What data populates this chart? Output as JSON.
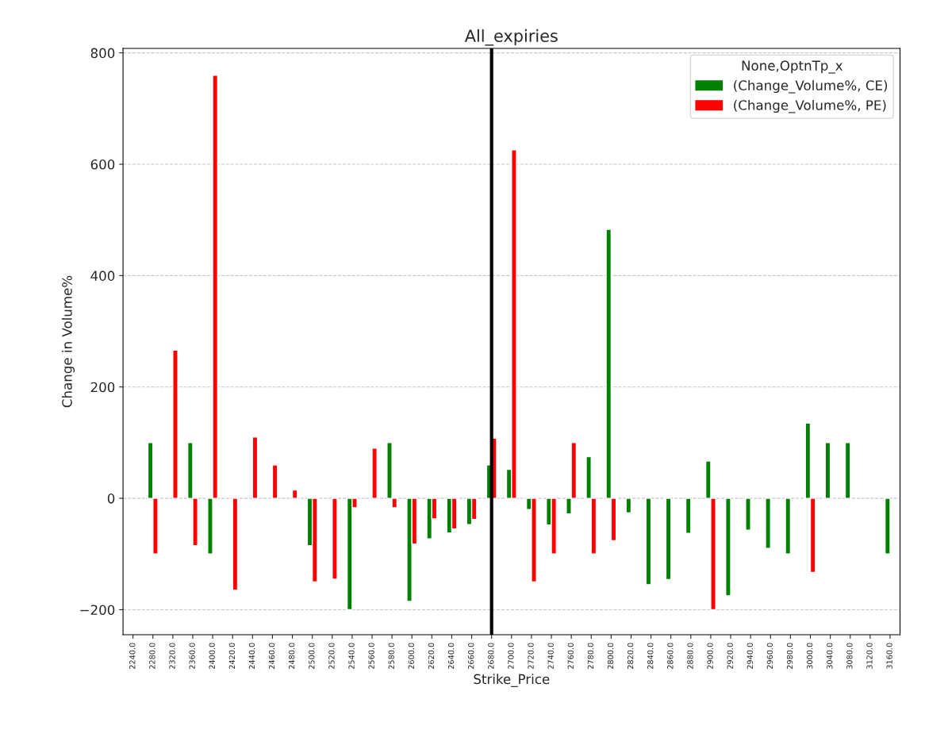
{
  "chart_data": {
    "type": "bar",
    "title": "All_expiries",
    "xlabel": "Strike_Price",
    "ylabel": "Change in Volume%",
    "legend_title": "None,OptnTp_x",
    "categories": [
      "2240.0",
      "2280.0",
      "2320.0",
      "2360.0",
      "2400.0",
      "2420.0",
      "2440.0",
      "2460.0",
      "2480.0",
      "2500.0",
      "2520.0",
      "2540.0",
      "2560.0",
      "2580.0",
      "2600.0",
      "2620.0",
      "2640.0",
      "2660.0",
      "2680.0",
      "2700.0",
      "2720.0",
      "2740.0",
      "2760.0",
      "2780.0",
      "2800.0",
      "2820.0",
      "2840.0",
      "2860.0",
      "2880.0",
      "2900.0",
      "2920.0",
      "2940.0",
      "2960.0",
      "2980.0",
      "3000.0",
      "3040.0",
      "3080.0",
      "3120.0",
      "3160.0"
    ],
    "series": [
      {
        "name": "(Change_Volume%, CE)",
        "color": "#008000",
        "values": [
          null,
          100,
          null,
          100,
          -100,
          null,
          null,
          null,
          null,
          -85,
          null,
          -200,
          null,
          100,
          -185,
          -73,
          -62,
          -47,
          60,
          52,
          -20,
          -48,
          -28,
          75,
          483,
          -26,
          -155,
          -146,
          -63,
          67,
          -175,
          -57,
          -90,
          -100,
          135,
          100,
          100,
          null,
          -100
        ]
      },
      {
        "name": "(Change_Volume%, PE)",
        "color": "#ff0000",
        "values": [
          null,
          -100,
          266,
          -85,
          760,
          -165,
          110,
          60,
          15,
          -150,
          -145,
          -17,
          90,
          -17,
          -82,
          -37,
          -55,
          -38,
          108,
          626,
          -150,
          -100,
          100,
          -100,
          -76,
          null,
          null,
          null,
          null,
          -200,
          null,
          null,
          null,
          null,
          -133,
          null,
          null,
          null,
          null
        ]
      }
    ],
    "ylim": [
      -245,
      808
    ],
    "yticks": [
      {
        "value": -200,
        "label": "−200"
      },
      0,
      200,
      400,
      600,
      800
    ],
    "grid": "y",
    "legend": "top right",
    "ref_lines": [
      {
        "axis": "x",
        "value": "2680.0",
        "color": "#000000"
      }
    ]
  }
}
